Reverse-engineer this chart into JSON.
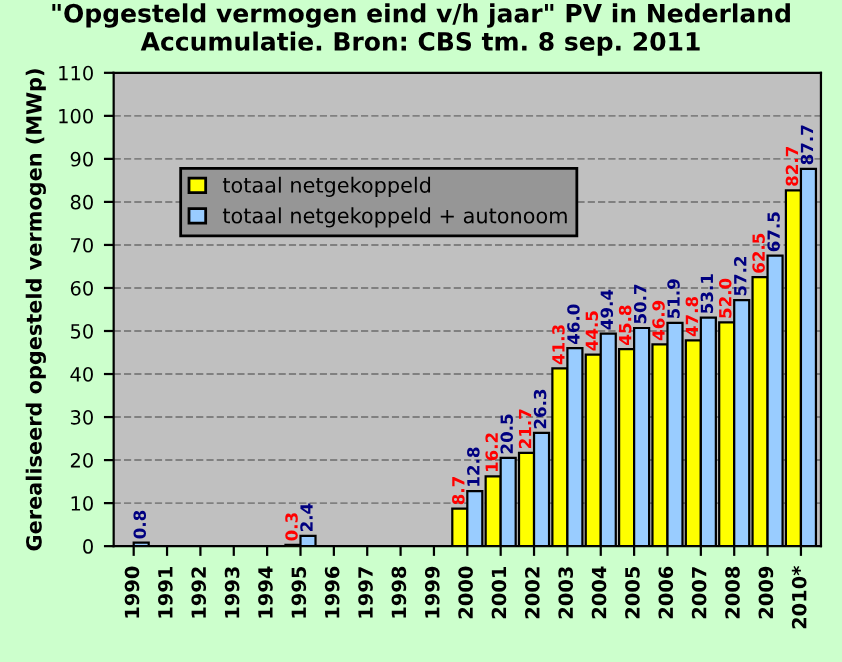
{
  "chart_data": {
    "type": "bar",
    "title": "\"Opgesteld vermogen eind v/h jaar\" PV in Nederland\nAccumulatie. Bron: CBS tm. 8 sep. 2011",
    "ylabel": "Gerealiseerd opgesteld vermogen (MWp)",
    "categories": [
      "1990",
      "1991",
      "1992",
      "1993",
      "1994",
      "1995",
      "1996",
      "1997",
      "1998",
      "1999",
      "2000",
      "2001",
      "2002",
      "2003",
      "2004",
      "2005",
      "2006",
      "2007",
      "2008",
      "2009",
      "2010*"
    ],
    "series": [
      {
        "name": "totaal netgekoppeld",
        "color": "#ffff00",
        "values": [
          null,
          null,
          null,
          null,
          null,
          0.3,
          null,
          null,
          null,
          null,
          8.7,
          16.2,
          21.7,
          41.3,
          44.5,
          45.8,
          46.9,
          47.8,
          52.0,
          62.5,
          82.7
        ],
        "value_labels": [
          null,
          null,
          null,
          null,
          null,
          "0.3",
          null,
          null,
          null,
          null,
          "8.7",
          "16.2",
          "21.7",
          "41.3",
          "44.5",
          "45.8",
          "46.9",
          "47.8",
          "52.0",
          "62.5",
          "82.7"
        ]
      },
      {
        "name": "totaal netgekoppeld + autonoom",
        "color": "#99ccff",
        "values": [
          0.8,
          null,
          null,
          null,
          null,
          2.4,
          null,
          null,
          null,
          null,
          12.8,
          20.5,
          26.3,
          46.0,
          49.4,
          50.7,
          51.9,
          53.1,
          57.2,
          67.5,
          87.7
        ],
        "value_labels": [
          "0.8",
          null,
          null,
          null,
          null,
          "2.4",
          null,
          null,
          null,
          null,
          "12.8",
          "20.5",
          "26.3",
          "46.0",
          "49.4",
          "50.7",
          "51.9",
          "53.1",
          "57.2",
          "67.5",
          "87.7"
        ]
      }
    ],
    "ylim": [
      0,
      110
    ],
    "yticks": [
      0,
      10,
      20,
      30,
      40,
      50,
      60,
      70,
      80,
      90,
      100,
      110
    ],
    "grid": "y",
    "legend": "top left"
  }
}
